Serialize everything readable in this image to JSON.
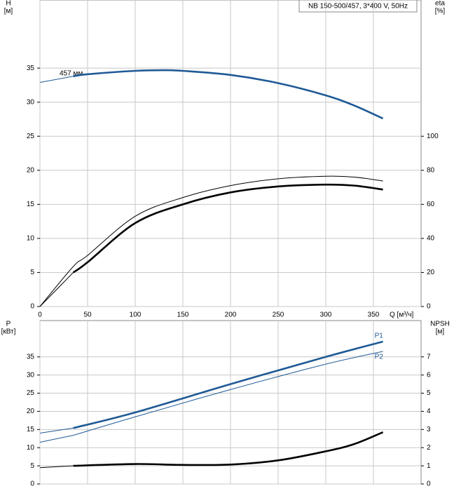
{
  "chart_data": [
    {
      "type": "line",
      "note": "NB 150-500/457, 3*400 V, 50Hz",
      "annotation": "457 мм",
      "xlabel": "Q [м³/ч]",
      "ylabel": "H",
      "yunit": "[м]",
      "y2label": "eta",
      "y2unit": "[%]",
      "xlim": [
        0,
        400
      ],
      "xticks": [
        0,
        50,
        100,
        150,
        200,
        250,
        300,
        350
      ],
      "ylim": [
        0,
        45
      ],
      "yticks": [
        0,
        5,
        10,
        15,
        20,
        25,
        30,
        35
      ],
      "y2lim": [
        0,
        180
      ],
      "y2ticks": [
        0,
        20,
        40,
        60,
        80,
        100
      ],
      "grid": true,
      "series": [
        {
          "color": "#1f5a96",
          "style": "thin",
          "x": [
            0,
            35
          ],
          "values": [
            32.9,
            33.8
          ]
        },
        {
          "color": "#1f5a96",
          "style": "thick",
          "x": [
            35,
            50,
            100,
            130,
            150,
            200,
            250,
            300,
            330,
            360
          ],
          "values": [
            33.8,
            34.1,
            34.6,
            34.7,
            34.6,
            34.0,
            32.8,
            31.0,
            29.5,
            27.6
          ]
        },
        {
          "color": "#000000",
          "style": "thin",
          "axis": "y2",
          "x": [
            0,
            35,
            50,
            100,
            150,
            200,
            250,
            300,
            330,
            360
          ],
          "values": [
            0,
            23.5,
            30,
            53,
            64,
            71,
            75,
            76.5,
            76,
            73.7
          ]
        },
        {
          "color": "#000000",
          "style": "thin",
          "axis": "y2",
          "x": [
            0,
            35
          ],
          "values": [
            0,
            20
          ]
        },
        {
          "color": "#000000",
          "style": "thick",
          "axis": "y2",
          "x": [
            35,
            50,
            100,
            150,
            200,
            250,
            300,
            330,
            360
          ],
          "values": [
            20,
            26,
            49,
            60,
            67,
            70.5,
            71.6,
            71,
            68.7
          ]
        }
      ]
    },
    {
      "type": "line",
      "ylabel": "P",
      "yunit": "[кВт]",
      "y2label": "NPSH",
      "y2unit": "[м]",
      "xlim": [
        0,
        400
      ],
      "xticks": [
        0,
        50,
        100,
        150,
        200,
        250,
        300,
        350
      ],
      "ylim": [
        0,
        45
      ],
      "yticks": [
        0,
        5,
        10,
        15,
        20,
        25,
        30,
        35
      ],
      "y2lim": [
        0,
        9
      ],
      "y2ticks": [
        0,
        1,
        2,
        3,
        4,
        5,
        6,
        7
      ],
      "grid": true,
      "series": [
        {
          "color": "#1f5a96",
          "style": "thin",
          "x": [
            0,
            35
          ],
          "values": [
            14,
            15.4
          ]
        },
        {
          "name": "P1",
          "color": "#1f5a96",
          "style": "thick",
          "x": [
            35,
            100,
            200,
            300,
            360
          ],
          "values": [
            15.4,
            19.7,
            27.5,
            35,
            39.2
          ]
        },
        {
          "color": "#1f5a96",
          "style": "thin",
          "x": [
            0,
            35
          ],
          "values": [
            11.5,
            13.4
          ]
        },
        {
          "name": "P2",
          "color": "#1f5a96",
          "style": "thin",
          "x": [
            35,
            100,
            200,
            300,
            360
          ],
          "values": [
            13.4,
            18.5,
            26,
            33,
            36.5
          ]
        },
        {
          "color": "#000000",
          "style": "thin",
          "axis": "y2",
          "x": [
            0,
            35
          ],
          "values": [
            0.9,
            1.0
          ]
        },
        {
          "color": "#000000",
          "style": "thick",
          "axis": "y2",
          "x": [
            35,
            100,
            150,
            200,
            250,
            300,
            330,
            360
          ],
          "values": [
            1.0,
            1.1,
            1.05,
            1.07,
            1.3,
            1.8,
            2.2,
            2.85
          ]
        }
      ]
    }
  ]
}
